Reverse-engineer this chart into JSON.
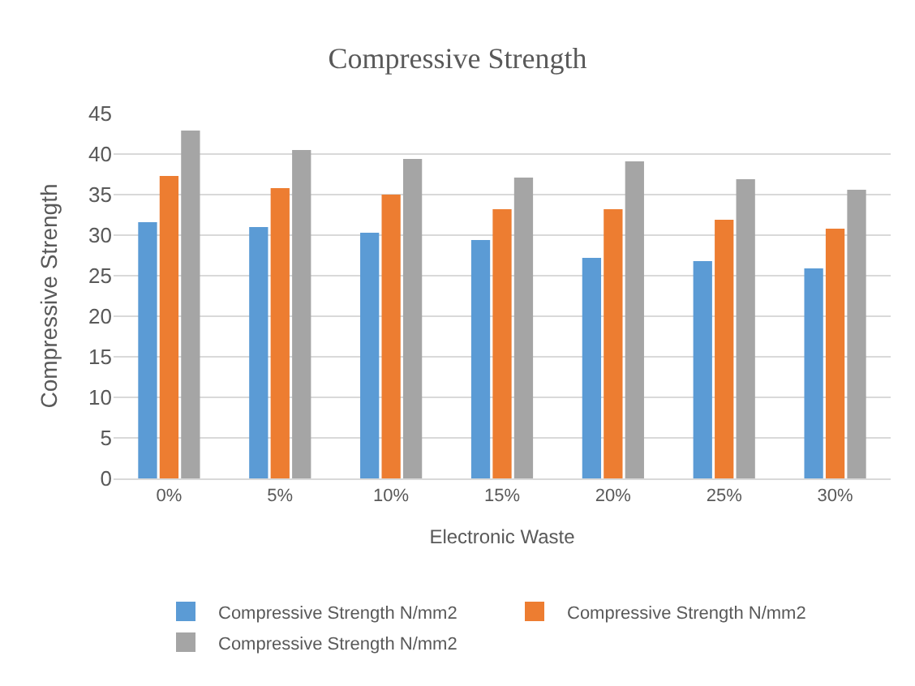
{
  "chart_data": {
    "type": "bar",
    "title": "Compressive Strength",
    "xlabel": "Electronic Waste",
    "ylabel": "Compressive Strength",
    "categories": [
      "0%",
      "5%",
      "10%",
      "15%",
      "20%",
      "25%",
      "30%"
    ],
    "series": [
      {
        "name": "Compressive Strength N/mm2",
        "color": "#5b9bd5",
        "values": [
          31.6,
          31.0,
          30.3,
          29.4,
          27.2,
          26.8,
          25.9
        ]
      },
      {
        "name": "Compressive Strength N/mm2",
        "color": "#ed7d31",
        "values": [
          37.3,
          35.8,
          35.0,
          33.2,
          33.2,
          31.9,
          30.8
        ]
      },
      {
        "name": "Compressive Strength N/mm2",
        "color": "#a5a5a5",
        "values": [
          42.9,
          40.5,
          39.4,
          37.1,
          39.1,
          36.9,
          35.6
        ]
      }
    ],
    "ylim": [
      0,
      45
    ],
    "yticks": [
      0,
      5,
      10,
      15,
      20,
      25,
      30,
      35,
      40,
      45
    ],
    "grid": "y",
    "legend": "bottom"
  }
}
